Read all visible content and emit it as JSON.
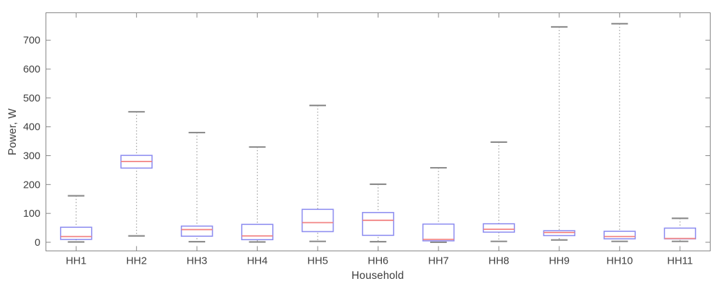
{
  "chart_data": {
    "type": "boxplot",
    "title": "",
    "xlabel": "Household",
    "ylabel": "Power, W",
    "categories": [
      "HH1",
      "HH2",
      "HH3",
      "HH4",
      "HH5",
      "HH6",
      "HH7",
      "HH8",
      "HH9",
      "HH10",
      "HH11"
    ],
    "yticks": [
      0,
      100,
      200,
      300,
      400,
      500,
      600,
      700
    ],
    "yticklabels": [
      "0",
      "100",
      "200",
      "300",
      "400",
      "500",
      "600",
      "700"
    ],
    "ylim": [
      -30,
      795
    ],
    "grid": false,
    "legend": null,
    "series": [
      {
        "category": "HH1",
        "whisker_low": 1,
        "q1": 10,
        "median": 20,
        "q3": 52,
        "whisker_high": 161
      },
      {
        "category": "HH2",
        "whisker_low": 22,
        "q1": 257,
        "median": 280,
        "q3": 301,
        "whisker_high": 452
      },
      {
        "category": "HH3",
        "whisker_low": 2,
        "q1": 21,
        "median": 44,
        "q3": 56,
        "whisker_high": 380
      },
      {
        "category": "HH4",
        "whisker_low": 1,
        "q1": 9,
        "median": 22,
        "q3": 62,
        "whisker_high": 330
      },
      {
        "category": "HH5",
        "whisker_low": 3,
        "q1": 37,
        "median": 68,
        "q3": 114,
        "whisker_high": 474
      },
      {
        "category": "HH6",
        "whisker_low": 2,
        "q1": 24,
        "median": 76,
        "q3": 103,
        "whisker_high": 201
      },
      {
        "category": "HH7",
        "whisker_low": 0,
        "q1": 5,
        "median": 10,
        "q3": 63,
        "whisker_high": 258
      },
      {
        "category": "HH8",
        "whisker_low": 3,
        "q1": 35,
        "median": 45,
        "q3": 64,
        "whisker_high": 347
      },
      {
        "category": "HH9",
        "whisker_low": 8,
        "q1": 23,
        "median": 34,
        "q3": 40,
        "whisker_high": 746
      },
      {
        "category": "HH10",
        "whisker_low": 3,
        "q1": 12,
        "median": 20,
        "q3": 38,
        "whisker_high": 757
      },
      {
        "category": "HH11",
        "whisker_low": 3,
        "q1": 12,
        "median": 13,
        "q3": 49,
        "whisker_high": 83
      }
    ],
    "colors": {
      "box_edge": "#8d8df0",
      "median": "#f28080",
      "whisker": "#9a9a9a",
      "whisker_cap": "#8c8c8c",
      "axis": "#848484",
      "tick_text": "#404040",
      "label_text": "#3d3d3d",
      "background": "#ffffff"
    }
  }
}
